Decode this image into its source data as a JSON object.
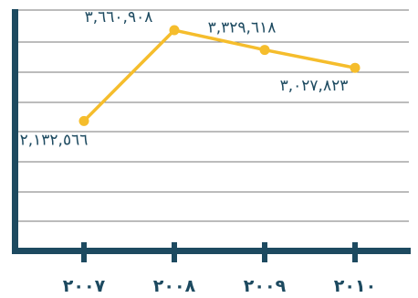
{
  "chart_data": {
    "type": "line",
    "categories": [
      "٢٠٠٧",
      "٢٠٠٨",
      "٢٠٠٩",
      "٢٠١٠"
    ],
    "series": [
      {
        "values": [
          2132566,
          3660908,
          3329618,
          3027823
        ],
        "labels": [
          "٢,١٣٢,٥٦٦",
          "٣,٦٦٠,٩٠٨",
          "٣,٣٢٩,٦١٨",
          "٣,٠٢٧,٨٢٣"
        ]
      }
    ],
    "ylim": [
      0,
      4000000
    ],
    "grid": true,
    "legend": "none"
  },
  "colors": {
    "line": "#f5bd2c",
    "axis": "#1d4a60",
    "grid": "#4d4d4d",
    "text": "#1d4a60"
  }
}
